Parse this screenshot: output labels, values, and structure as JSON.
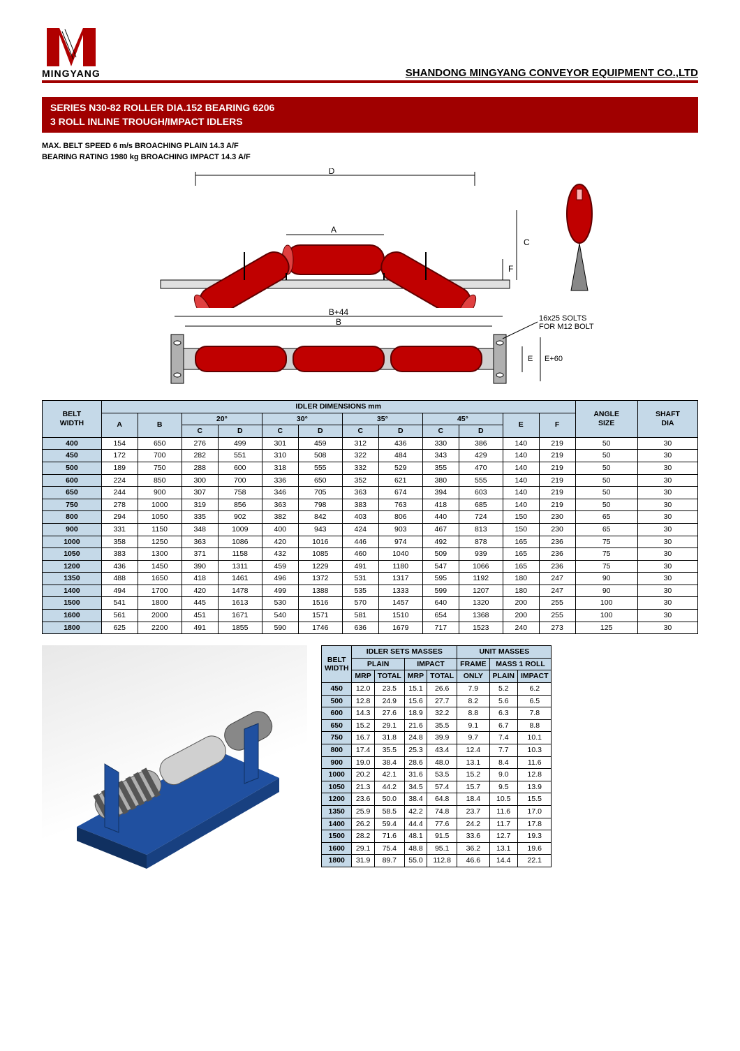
{
  "logo_text": "MINGYANG",
  "company": "SHANDONG MINGYANG CONVEYOR EQUIPMENT CO.,LTD",
  "banner_line1": "SERIES N30-82 ROLLER DIA.152 BEARING 6206",
  "banner_line2": "3 ROLL INLINE TROUGH/IMPACT IDLERS",
  "spec_line1": "MAX. BELT SPEED 6 m/s BROACHING PLAIN 14.3 A/F",
  "spec_line2": "BEARING RATING 1980 kg BROACHING IMPACT 14.3 A/F",
  "diagram_labels": {
    "A": "A",
    "B": "B",
    "B44": "B+44",
    "C": "C",
    "D": "D",
    "E": "E",
    "E60": "E+60",
    "F": "F",
    "slots": "16x25 SOLTS",
    "bolt": "FOR M12 BOLT"
  },
  "colors": {
    "red": "#b00000",
    "panel_bg": "#c5d9e8",
    "banner": "#a00000",
    "steel": "#888888"
  },
  "dim_table": {
    "title": "IDLER DIMENSIONS mm",
    "angles": [
      "20°",
      "30°",
      "35°",
      "45°"
    ],
    "belt": "BELT",
    "width": "WIDTH",
    "angle": "ANGLE",
    "size": "SIZE",
    "shaft": "SHAFT",
    "dia": "DIA",
    "cols": [
      "A",
      "B",
      "C",
      "D",
      "C",
      "D",
      "C",
      "D",
      "C",
      "D",
      "E",
      "F"
    ],
    "rows": [
      [
        "400",
        "154",
        "650",
        "276",
        "499",
        "301",
        "459",
        "312",
        "436",
        "330",
        "386",
        "140",
        "219",
        "50",
        "30"
      ],
      [
        "450",
        "172",
        "700",
        "282",
        "551",
        "310",
        "508",
        "322",
        "484",
        "343",
        "429",
        "140",
        "219",
        "50",
        "30"
      ],
      [
        "500",
        "189",
        "750",
        "288",
        "600",
        "318",
        "555",
        "332",
        "529",
        "355",
        "470",
        "140",
        "219",
        "50",
        "30"
      ],
      [
        "600",
        "224",
        "850",
        "300",
        "700",
        "336",
        "650",
        "352",
        "621",
        "380",
        "555",
        "140",
        "219",
        "50",
        "30"
      ],
      [
        "650",
        "244",
        "900",
        "307",
        "758",
        "346",
        "705",
        "363",
        "674",
        "394",
        "603",
        "140",
        "219",
        "50",
        "30"
      ],
      [
        "750",
        "278",
        "1000",
        "319",
        "856",
        "363",
        "798",
        "383",
        "763",
        "418",
        "685",
        "140",
        "219",
        "50",
        "30"
      ],
      [
        "800",
        "294",
        "1050",
        "335",
        "902",
        "382",
        "842",
        "403",
        "806",
        "440",
        "724",
        "150",
        "230",
        "65",
        "30"
      ],
      [
        "900",
        "331",
        "1150",
        "348",
        "1009",
        "400",
        "943",
        "424",
        "903",
        "467",
        "813",
        "150",
        "230",
        "65",
        "30"
      ],
      [
        "1000",
        "358",
        "1250",
        "363",
        "1086",
        "420",
        "1016",
        "446",
        "974",
        "492",
        "878",
        "165",
        "236",
        "75",
        "30"
      ],
      [
        "1050",
        "383",
        "1300",
        "371",
        "1158",
        "432",
        "1085",
        "460",
        "1040",
        "509",
        "939",
        "165",
        "236",
        "75",
        "30"
      ],
      [
        "1200",
        "436",
        "1450",
        "390",
        "1311",
        "459",
        "1229",
        "491",
        "1180",
        "547",
        "1066",
        "165",
        "236",
        "75",
        "30"
      ],
      [
        "1350",
        "488",
        "1650",
        "418",
        "1461",
        "496",
        "1372",
        "531",
        "1317",
        "595",
        "1192",
        "180",
        "247",
        "90",
        "30"
      ],
      [
        "1400",
        "494",
        "1700",
        "420",
        "1478",
        "499",
        "1388",
        "535",
        "1333",
        "599",
        "1207",
        "180",
        "247",
        "90",
        "30"
      ],
      [
        "1500",
        "541",
        "1800",
        "445",
        "1613",
        "530",
        "1516",
        "570",
        "1457",
        "640",
        "1320",
        "200",
        "255",
        "100",
        "30"
      ],
      [
        "1600",
        "561",
        "2000",
        "451",
        "1671",
        "540",
        "1571",
        "581",
        "1510",
        "654",
        "1368",
        "200",
        "255",
        "100",
        "30"
      ],
      [
        "1800",
        "625",
        "2200",
        "491",
        "1855",
        "590",
        "1746",
        "636",
        "1679",
        "717",
        "1523",
        "240",
        "273",
        "125",
        "30"
      ]
    ]
  },
  "mass_table": {
    "h1": "IDLER SETS MASSES",
    "h2": "UNIT MASSES",
    "plain": "PLAIN",
    "impact": "IMPACT",
    "frame": "FRAME",
    "mass1": "MASS 1 ROLL",
    "only": "ONLY",
    "mrp": "MRP",
    "total": "TOTAL",
    "rows": [
      [
        "450",
        "12.0",
        "23.5",
        "15.1",
        "26.6",
        "7.9",
        "5.2",
        "6.2"
      ],
      [
        "500",
        "12.8",
        "24.9",
        "15.6",
        "27.7",
        "8.2",
        "5.6",
        "6.5"
      ],
      [
        "600",
        "14.3",
        "27.6",
        "18.9",
        "32.2",
        "8.8",
        "6.3",
        "7.8"
      ],
      [
        "650",
        "15.2",
        "29.1",
        "21.6",
        "35.5",
        "9.1",
        "6.7",
        "8.8"
      ],
      [
        "750",
        "16.7",
        "31.8",
        "24.8",
        "39.9",
        "9.7",
        "7.4",
        "10.1"
      ],
      [
        "800",
        "17.4",
        "35.5",
        "25.3",
        "43.4",
        "12.4",
        "7.7",
        "10.3"
      ],
      [
        "900",
        "19.0",
        "38.4",
        "28.6",
        "48.0",
        "13.1",
        "8.4",
        "11.6"
      ],
      [
        "1000",
        "20.2",
        "42.1",
        "31.6",
        "53.5",
        "15.2",
        "9.0",
        "12.8"
      ],
      [
        "1050",
        "21.3",
        "44.2",
        "34.5",
        "57.4",
        "15.7",
        "9.5",
        "13.9"
      ],
      [
        "1200",
        "23.6",
        "50.0",
        "38.4",
        "64.8",
        "18.4",
        "10.5",
        "15.5"
      ],
      [
        "1350",
        "25.9",
        "58.5",
        "42.2",
        "74.8",
        "23.7",
        "11.6",
        "17.0"
      ],
      [
        "1400",
        "26.2",
        "59.4",
        "44.4",
        "77.6",
        "24.2",
        "11.7",
        "17.8"
      ],
      [
        "1500",
        "28.2",
        "71.6",
        "48.1",
        "91.5",
        "33.6",
        "12.7",
        "19.3"
      ],
      [
        "1600",
        "29.1",
        "75.4",
        "48.8",
        "95.1",
        "36.2",
        "13.1",
        "19.6"
      ],
      [
        "1800",
        "31.9",
        "89.7",
        "55.0",
        "112.8",
        "46.6",
        "14.4",
        "22.1"
      ]
    ]
  }
}
